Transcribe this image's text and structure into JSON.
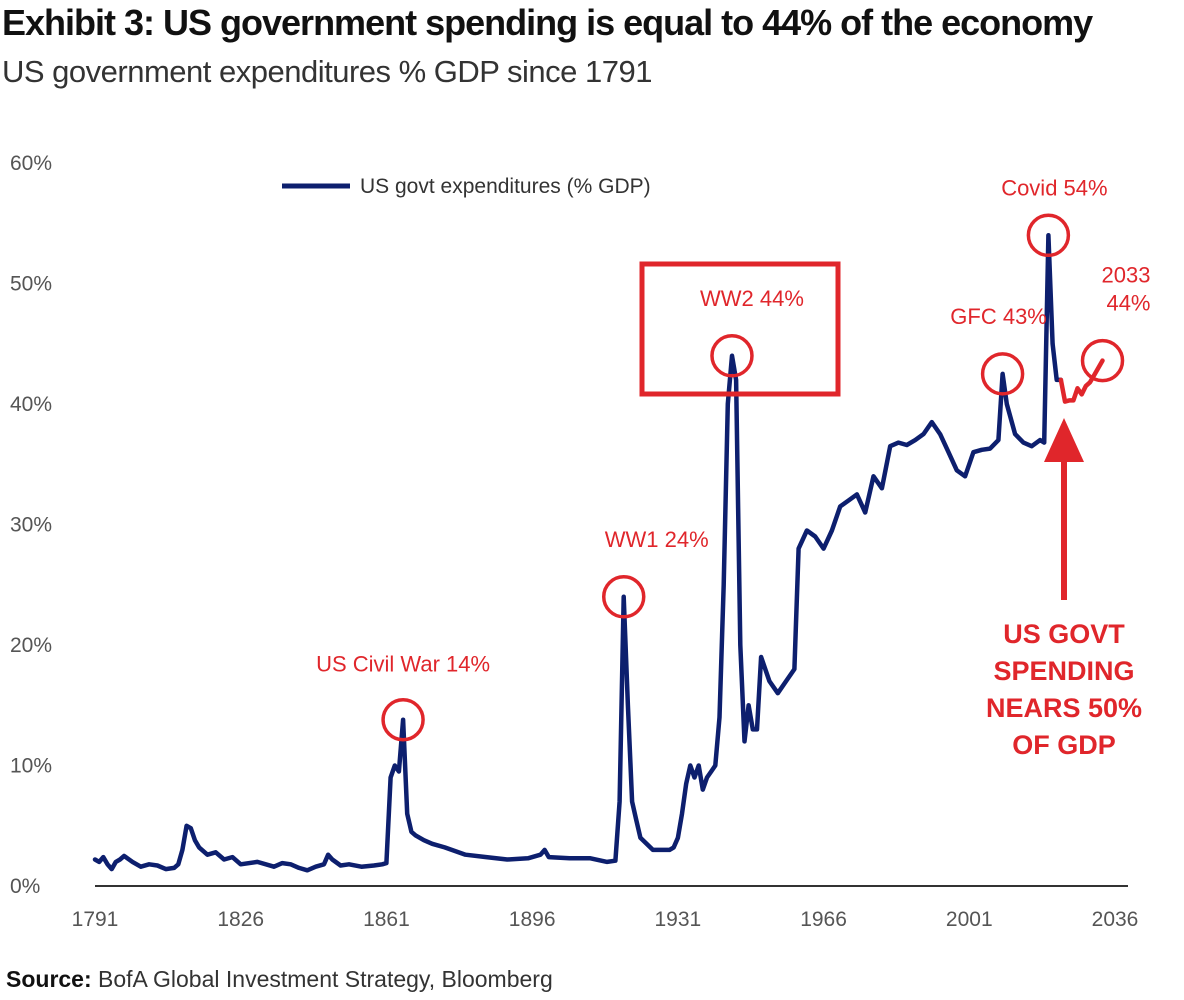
{
  "header": {
    "title": "Exhibit 3: US government spending is equal to 44% of the economy",
    "subtitle": "US government expenditures % GDP since 1791"
  },
  "source": {
    "label": "Source:",
    "text": "BofA Global Investment Strategy, Bloomberg"
  },
  "colors": {
    "series": "#0d1f6e",
    "projection": "#e0262b",
    "annotation": "#e0262b",
    "axis": "#333333"
  },
  "chart_data": {
    "type": "line",
    "title": "",
    "xlabel": "",
    "ylabel": "",
    "xlim": [
      1791,
      2036
    ],
    "ylim": [
      0,
      60
    ],
    "x_ticks": [
      1791,
      1826,
      1861,
      1896,
      1931,
      1966,
      2001,
      2036
    ],
    "x_tick_labels": [
      "1791",
      "1826",
      "1861",
      "1896",
      "1931",
      "1966",
      "2001",
      "2036"
    ],
    "y_ticks": [
      0,
      10,
      20,
      30,
      40,
      50,
      60
    ],
    "y_tick_labels": [
      "0%",
      "10%",
      "20%",
      "30%",
      "40%",
      "50%",
      "60%"
    ],
    "grid": false,
    "legend_position": "top",
    "series": [
      {
        "name": "US govt expenditures (% GDP)",
        "x": [
          1791,
          1792,
          1793,
          1794,
          1795,
          1796,
          1797,
          1798,
          1800,
          1802,
          1804,
          1806,
          1808,
          1810,
          1811,
          1812,
          1813,
          1814,
          1815,
          1816,
          1818,
          1820,
          1822,
          1824,
          1826,
          1830,
          1834,
          1836,
          1838,
          1840,
          1842,
          1844,
          1846,
          1847,
          1848,
          1850,
          1852,
          1855,
          1858,
          1860,
          1861,
          1862,
          1863,
          1864,
          1865,
          1866,
          1867,
          1868,
          1870,
          1872,
          1875,
          1880,
          1885,
          1890,
          1895,
          1898,
          1899,
          1900,
          1905,
          1910,
          1914,
          1916,
          1917,
          1918,
          1919,
          1920,
          1921,
          1922,
          1925,
          1929,
          1930,
          1931,
          1932,
          1933,
          1934,
          1935,
          1936,
          1937,
          1938,
          1939,
          1940,
          1941,
          1942,
          1943,
          1944,
          1945,
          1946,
          1947,
          1948,
          1949,
          1950,
          1951,
          1953,
          1955,
          1957,
          1959,
          1960,
          1962,
          1964,
          1966,
          1968,
          1970,
          1972,
          1974,
          1976,
          1978,
          1980,
          1982,
          1984,
          1986,
          1988,
          1990,
          1992,
          1994,
          1996,
          1998,
          2000,
          2002,
          2004,
          2006,
          2008,
          2009,
          2010,
          2012,
          2014,
          2016,
          2018,
          2019,
          2020,
          2021,
          2022,
          2023
        ],
        "y": [
          2.2,
          2.0,
          2.4,
          1.8,
          1.4,
          2.0,
          2.2,
          2.5,
          2.0,
          1.6,
          1.8,
          1.7,
          1.4,
          1.5,
          1.8,
          3.0,
          5.0,
          4.8,
          3.8,
          3.2,
          2.6,
          2.8,
          2.2,
          2.4,
          1.8,
          2.0,
          1.6,
          1.9,
          1.8,
          1.5,
          1.3,
          1.6,
          1.8,
          2.6,
          2.2,
          1.7,
          1.8,
          1.6,
          1.7,
          1.8,
          1.9,
          9.0,
          10.0,
          9.5,
          13.8,
          6.0,
          4.5,
          4.2,
          3.8,
          3.5,
          3.2,
          2.6,
          2.4,
          2.2,
          2.3,
          2.6,
          3.0,
          2.4,
          2.3,
          2.3,
          2.0,
          2.1,
          7.0,
          24.0,
          15.0,
          7.0,
          5.5,
          4.0,
          3.0,
          3.0,
          3.2,
          4.0,
          6.0,
          8.5,
          10.0,
          9.0,
          10.0,
          8.0,
          9.0,
          9.5,
          10.0,
          14.0,
          25.0,
          40.0,
          44.0,
          42.0,
          20.0,
          12.0,
          15.0,
          13.0,
          13.0,
          19.0,
          17.0,
          16.0,
          17.0,
          18.0,
          28.0,
          29.5,
          29.0,
          28.0,
          29.5,
          31.5,
          32.0,
          32.5,
          31.0,
          34.0,
          33.0,
          36.5,
          36.8,
          36.6,
          37.0,
          37.5,
          38.5,
          37.5,
          36.0,
          34.5,
          34.0,
          36.0,
          36.2,
          36.3,
          37.0,
          42.5,
          40.0,
          37.5,
          36.8,
          36.5,
          37.0,
          36.8,
          54.0,
          45.0,
          42.0,
          42.0
        ]
      },
      {
        "name": "projection",
        "x": [
          2023,
          2024,
          2025,
          2026,
          2027,
          2028,
          2029,
          2030,
          2031,
          2033
        ],
        "y": [
          42.0,
          40.2,
          40.3,
          40.3,
          41.3,
          40.8,
          41.5,
          41.8,
          42.4,
          43.6
        ]
      }
    ],
    "annotations": [
      {
        "label": "US Civil War 14%",
        "x": 1865,
        "y": 13.8
      },
      {
        "label": "WW1 24%",
        "x": 1918,
        "y": 24.0
      },
      {
        "label": "WW2 44%",
        "x": 1944,
        "y": 44.0
      },
      {
        "label": "GFC 43%",
        "x": 2009,
        "y": 42.5
      },
      {
        "label": "Covid 54%",
        "x": 2020,
        "y": 54.0
      },
      {
        "label_lines": [
          "2033",
          "44%"
        ],
        "x": 2033,
        "y": 43.6
      }
    ],
    "callout_lines": [
      "US GOVT",
      "SPENDING",
      "NEARS 50%",
      "OF GDP"
    ]
  }
}
